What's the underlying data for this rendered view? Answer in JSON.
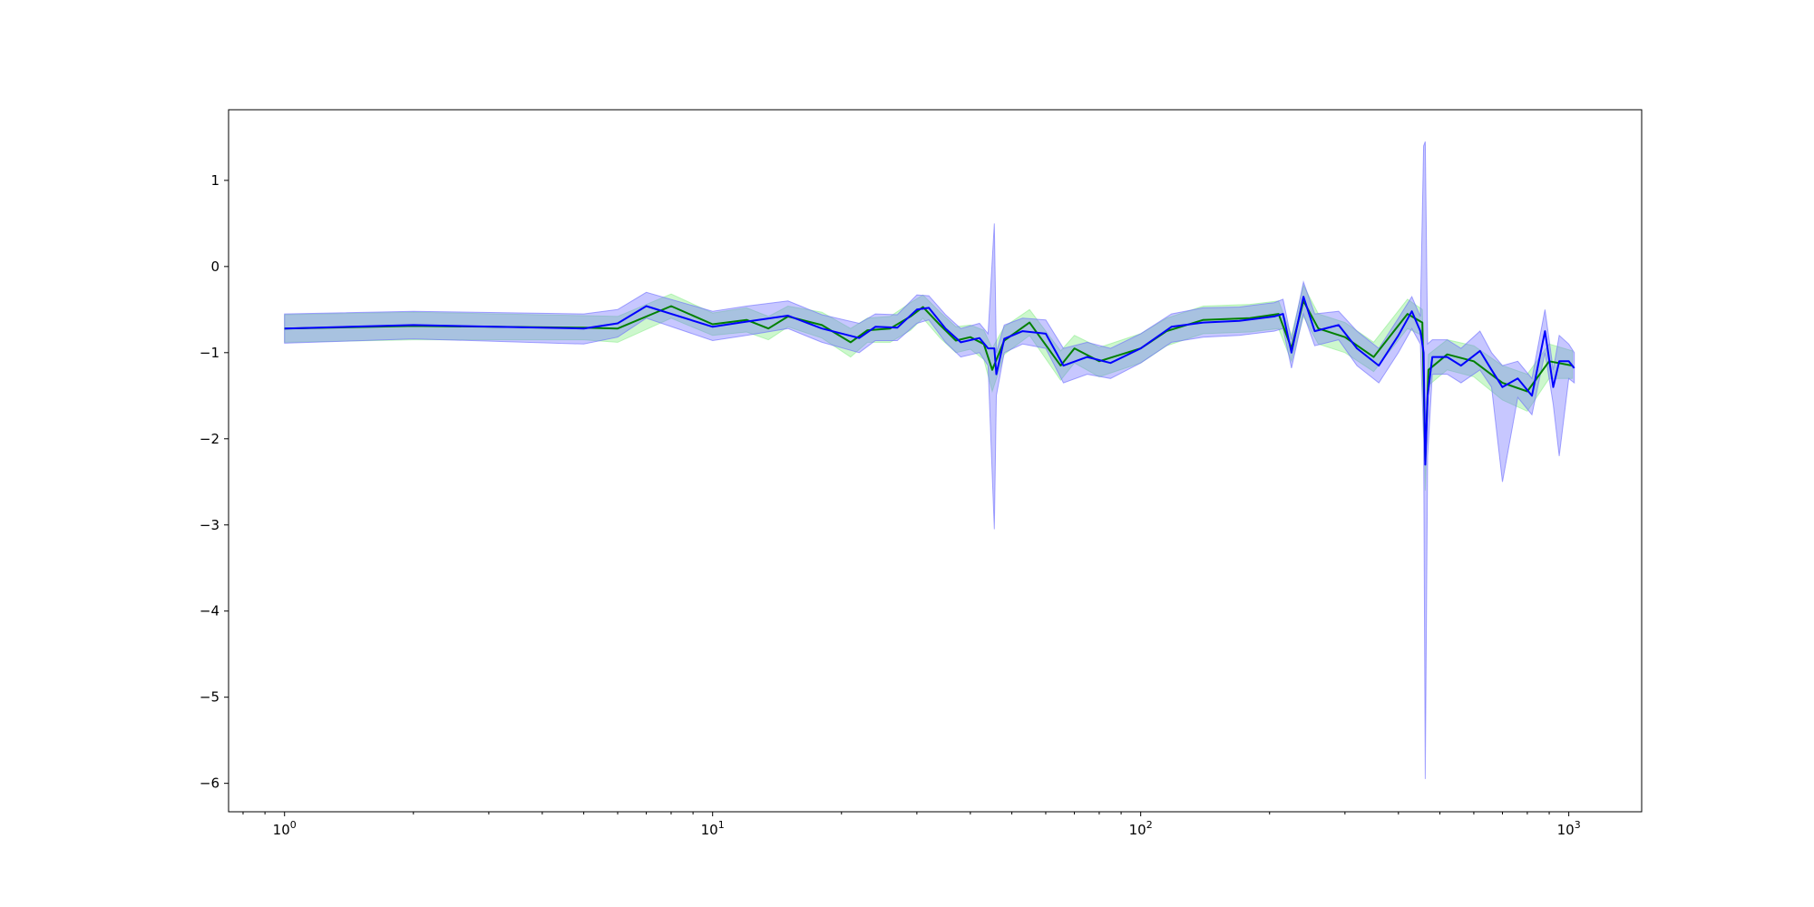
{
  "chart_data": {
    "type": "line",
    "title": "",
    "xlabel": "",
    "ylabel": "",
    "x_scale": "log",
    "xlim": [
      0.74,
      1480
    ],
    "ylim": [
      -6.33,
      1.82
    ],
    "grid": false,
    "legend": "none",
    "x_ticks": [
      {
        "value": 1,
        "base": "10",
        "exp": "0"
      },
      {
        "value": 10,
        "base": "10",
        "exp": "1"
      },
      {
        "value": 100,
        "base": "10",
        "exp": "2"
      },
      {
        "value": 1000,
        "base": "10",
        "exp": "3"
      }
    ],
    "y_ticks": [
      {
        "value": 1,
        "label": "1"
      },
      {
        "value": 0,
        "label": "0"
      },
      {
        "value": -1,
        "label": "−1"
      },
      {
        "value": -2,
        "label": "−2"
      },
      {
        "value": -3,
        "label": "−3"
      },
      {
        "value": -4,
        "label": "−4"
      },
      {
        "value": -5,
        "label": "−5"
      },
      {
        "value": -6,
        "label": "−6"
      }
    ],
    "series": [
      {
        "color": "#008000",
        "band_color": "#90ee90",
        "band_opacity": 0.45,
        "line_width": 2,
        "points": [
          [
            1,
            -0.72,
            -0.88,
            -0.56
          ],
          [
            2,
            -0.69,
            -0.85,
            -0.53
          ],
          [
            5,
            -0.71,
            -0.85,
            -0.57
          ],
          [
            6,
            -0.72,
            -0.88,
            -0.58
          ],
          [
            8,
            -0.46,
            -0.6,
            -0.32
          ],
          [
            10,
            -0.67,
            -0.8,
            -0.54
          ],
          [
            12,
            -0.62,
            -0.76,
            -0.48
          ],
          [
            13.5,
            -0.72,
            -0.85,
            -0.58
          ],
          [
            15,
            -0.58,
            -0.7,
            -0.46
          ],
          [
            18,
            -0.68,
            -0.83,
            -0.53
          ],
          [
            21,
            -0.88,
            -1.05,
            -0.72
          ],
          [
            23,
            -0.74,
            -0.88,
            -0.6
          ],
          [
            26,
            -0.72,
            -0.88,
            -0.58
          ],
          [
            29,
            -0.58,
            -0.74,
            -0.42
          ],
          [
            31,
            -0.47,
            -0.6,
            -0.33
          ],
          [
            34,
            -0.68,
            -0.83,
            -0.53
          ],
          [
            37,
            -0.86,
            -1.0,
            -0.7
          ],
          [
            40,
            -0.82,
            -0.96,
            -0.68
          ],
          [
            43,
            -0.9,
            -1.08,
            -0.74
          ],
          [
            45,
            -1.2,
            -1.45,
            -0.95
          ],
          [
            48,
            -0.86,
            -1.02,
            -0.7
          ],
          [
            55,
            -0.65,
            -0.8,
            -0.5
          ],
          [
            65,
            -1.15,
            -1.32,
            -0.98
          ],
          [
            70,
            -0.95,
            -1.12,
            -0.8
          ],
          [
            80,
            -1.1,
            -1.28,
            -0.94
          ],
          [
            100,
            -0.95,
            -1.12,
            -0.78
          ],
          [
            115,
            -0.75,
            -0.92,
            -0.6
          ],
          [
            140,
            -0.62,
            -0.78,
            -0.46
          ],
          [
            180,
            -0.6,
            -0.76,
            -0.44
          ],
          [
            210,
            -0.55,
            -0.72,
            -0.4
          ],
          [
            225,
            -0.95,
            -1.1,
            -0.8
          ],
          [
            240,
            -0.4,
            -0.58,
            -0.22
          ],
          [
            260,
            -0.72,
            -0.9,
            -0.55
          ],
          [
            300,
            -0.82,
            -1.0,
            -0.65
          ],
          [
            350,
            -1.05,
            -1.22,
            -0.88
          ],
          [
            420,
            -0.55,
            -0.72,
            -0.38
          ],
          [
            455,
            -0.65,
            -0.8,
            -0.5
          ],
          [
            462,
            -2.25,
            -2.6,
            -1.95
          ],
          [
            470,
            -1.2,
            -1.38,
            -1.02
          ],
          [
            520,
            -1.02,
            -1.2,
            -0.85
          ],
          [
            600,
            -1.1,
            -1.28,
            -0.92
          ],
          [
            700,
            -1.35,
            -1.55,
            -1.15
          ],
          [
            800,
            -1.45,
            -1.68,
            -1.25
          ],
          [
            900,
            -1.1,
            -1.3,
            -0.9
          ],
          [
            1020,
            -1.15,
            -1.3,
            -0.98
          ]
        ]
      },
      {
        "color": "#0000ff",
        "band_color": "#6b6bff",
        "band_opacity": 0.38,
        "line_width": 2,
        "points": [
          [
            1,
            -0.72,
            -0.89,
            -0.55
          ],
          [
            2,
            -0.68,
            -0.84,
            -0.52
          ],
          [
            5,
            -0.72,
            -0.9,
            -0.55
          ],
          [
            6,
            -0.66,
            -0.82,
            -0.5
          ],
          [
            7,
            -0.46,
            -0.6,
            -0.3
          ],
          [
            10,
            -0.7,
            -0.86,
            -0.52
          ],
          [
            12,
            -0.64,
            -0.8,
            -0.46
          ],
          [
            15,
            -0.57,
            -0.72,
            -0.4
          ],
          [
            18,
            -0.72,
            -0.88,
            -0.56
          ],
          [
            22,
            -0.83,
            -1.0,
            -0.66
          ],
          [
            24,
            -0.7,
            -0.86,
            -0.55
          ],
          [
            27,
            -0.71,
            -0.86,
            -0.56
          ],
          [
            30,
            -0.5,
            -0.66,
            -0.33
          ],
          [
            32,
            -0.48,
            -0.62,
            -0.34
          ],
          [
            35,
            -0.72,
            -0.88,
            -0.56
          ],
          [
            38,
            -0.88,
            -1.05,
            -0.72
          ],
          [
            42,
            -0.83,
            -1.0,
            -0.66
          ],
          [
            44,
            -0.95,
            -1.15,
            -0.78
          ],
          [
            45.5,
            -0.95,
            -3.05,
            0.5
          ],
          [
            46,
            -1.25,
            -1.5,
            -1.0
          ],
          [
            48,
            -0.84,
            -1.0,
            -0.68
          ],
          [
            53,
            -0.75,
            -0.9,
            -0.6
          ],
          [
            60,
            -0.78,
            -0.95,
            -0.62
          ],
          [
            66,
            -1.15,
            -1.35,
            -0.95
          ],
          [
            75,
            -1.05,
            -1.25,
            -0.88
          ],
          [
            85,
            -1.12,
            -1.3,
            -0.95
          ],
          [
            100,
            -0.95,
            -1.12,
            -0.78
          ],
          [
            118,
            -0.7,
            -0.88,
            -0.55
          ],
          [
            140,
            -0.65,
            -0.82,
            -0.48
          ],
          [
            170,
            -0.63,
            -0.8,
            -0.47
          ],
          [
            205,
            -0.58,
            -0.75,
            -0.42
          ],
          [
            215,
            -0.55,
            -0.72,
            -0.38
          ],
          [
            225,
            -1.0,
            -1.18,
            -0.85
          ],
          [
            240,
            -0.35,
            -0.55,
            -0.18
          ],
          [
            255,
            -0.75,
            -0.92,
            -0.55
          ],
          [
            290,
            -0.68,
            -0.85,
            -0.52
          ],
          [
            320,
            -0.95,
            -1.15,
            -0.75
          ],
          [
            360,
            -1.15,
            -1.35,
            -0.95
          ],
          [
            400,
            -0.8,
            -1.0,
            -0.6
          ],
          [
            430,
            -0.52,
            -0.72,
            -0.35
          ],
          [
            450,
            -0.75,
            -0.9,
            -0.58
          ],
          [
            458,
            -1.0,
            -2.0,
            1.4
          ],
          [
            462,
            -2.3,
            -5.95,
            1.45
          ],
          [
            468,
            -1.5,
            -2.2,
            -0.9
          ],
          [
            480,
            -1.05,
            -1.25,
            -0.85
          ],
          [
            520,
            -1.05,
            -1.25,
            -0.85
          ],
          [
            560,
            -1.15,
            -1.35,
            -0.95
          ],
          [
            620,
            -0.98,
            -1.2,
            -0.75
          ],
          [
            660,
            -1.2,
            -1.4,
            -1.0
          ],
          [
            700,
            -1.4,
            -2.5,
            -1.15
          ],
          [
            760,
            -1.3,
            -1.52,
            -1.1
          ],
          [
            820,
            -1.5,
            -1.72,
            -1.3
          ],
          [
            880,
            -0.75,
            -1.0,
            -0.5
          ],
          [
            920,
            -1.4,
            -1.6,
            -1.2
          ],
          [
            950,
            -1.1,
            -2.2,
            -0.8
          ],
          [
            1000,
            -1.1,
            -1.3,
            -0.9
          ],
          [
            1030,
            -1.18,
            -1.35,
            -1.0
          ]
        ]
      }
    ]
  }
}
